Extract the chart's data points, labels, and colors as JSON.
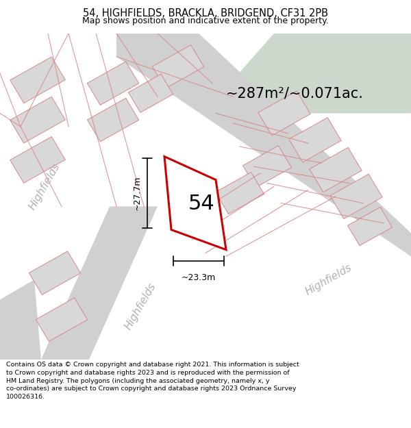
{
  "title": "54, HIGHFIELDS, BRACKLA, BRIDGEND, CF31 2PB",
  "subtitle": "Map shows position and indicative extent of the property.",
  "area_label": "~287m²/~0.071ac.",
  "plot_number": "54",
  "dim_width": "~23.3m",
  "dim_height": "~27.7m",
  "footer": "Contains OS data © Crown copyright and database right 2021. This information is subject to Crown copyright and database rights 2023 and is reproduced with the permission of HM Land Registry. The polygons (including the associated geometry, namely x, y co-ordinates) are subject to Crown copyright and database rights 2023 Ordnance Survey 100026316.",
  "map_bg": "#e8e8e8",
  "green_area": "#cdd8cc",
  "road_fill": "#d4d4d4",
  "red_outline": "#cc0000",
  "building_outline": "#d88888",
  "building_fill": "#d8d8d8",
  "street_color": "#b0b0b0",
  "title_fontsize": 10.5,
  "subtitle_fontsize": 9,
  "footer_fontsize": 6.8
}
